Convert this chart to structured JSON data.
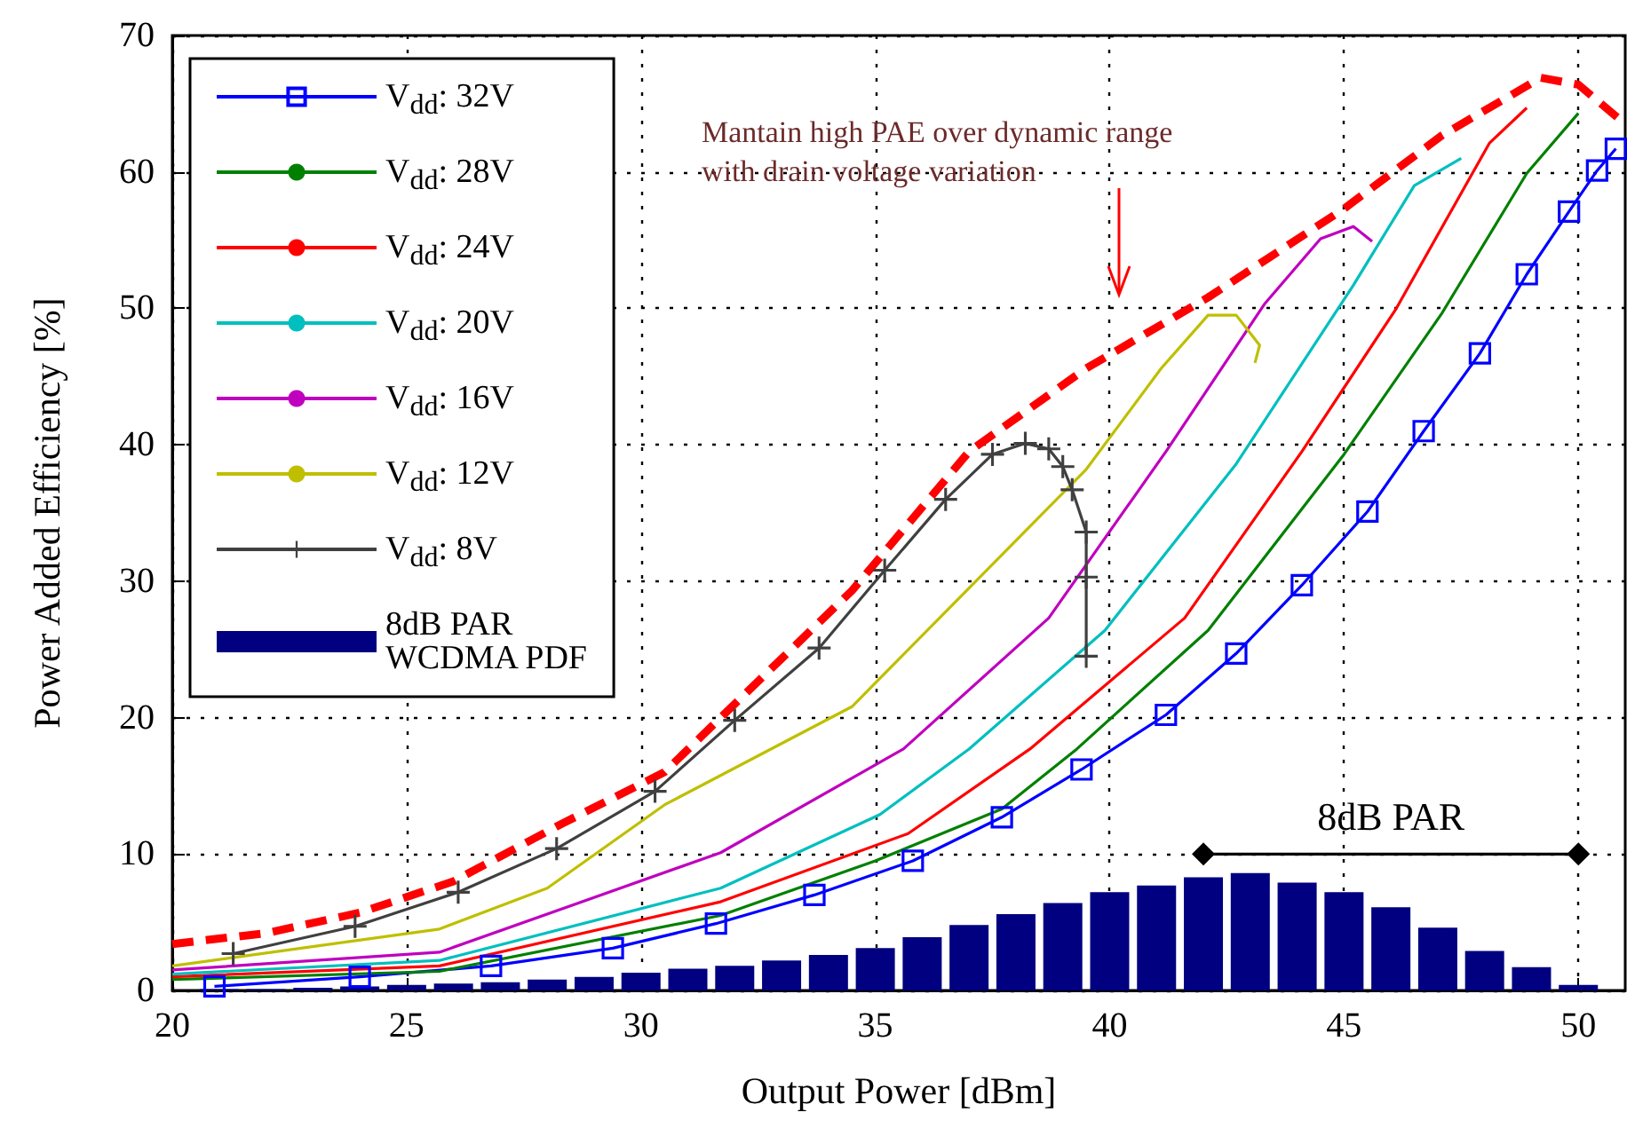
{
  "chart_data": {
    "type": "line",
    "xlabel": "Output Power [dBm]",
    "ylabel": "Power Added Efficiency [%]",
    "xlim": [
      20,
      51
    ],
    "xticks": [
      20,
      25,
      30,
      35,
      40,
      45,
      50
    ],
    "ylim": [
      0,
      70
    ],
    "yticks": [
      0,
      10,
      20,
      30,
      40,
      50,
      60,
      70
    ],
    "grid": true,
    "legend": "top left",
    "marker": "none",
    "annotations": [
      "Mantain high PAE over dynamic range\nwith drain voltage variation",
      {
        "text": "8dB PAR",
        "x": 46,
        "y": 10
      }
    ],
    "series": [
      {
        "name": "V$_{dd}$: 32V",
        "color": "#0000ff",
        "marker": "square",
        "x": [
          20.9,
          24.0,
          26.8,
          29.4,
          31.6,
          33.7,
          35.8,
          37.7,
          39.4,
          41.2,
          42.7,
          44.1,
          45.5,
          46.7,
          47.9,
          48.9,
          49.8,
          50.4,
          50.8
        ],
        "values": [
          0.3,
          1.0,
          1.8,
          3.1,
          4.9,
          7.0,
          9.5,
          12.7,
          16.2,
          20.2,
          24.7,
          29.7,
          35.1,
          41.0,
          46.7,
          52.5,
          57.1,
          60.1,
          61.7
        ]
      },
      {
        "name": "V$_{dd}$: 28V",
        "color": "#008000",
        "x": [
          20,
          25.7,
          31.7,
          35,
          37.7,
          39.3,
          42.1,
          45.0,
          47.1,
          48.9,
          50.0
        ],
        "values": [
          0.8,
          1.4,
          5.5,
          9.5,
          13.3,
          17.7,
          26.4,
          39.3,
          49.7,
          59.9,
          64.3
        ]
      },
      {
        "name": "V$_{dd}$: 24V",
        "color": "#ff0000",
        "x": [
          20,
          25.7,
          31.7,
          35.7,
          38.3,
          41.6,
          44.1,
          46.1,
          48.1,
          48.9
        ],
        "values": [
          1.0,
          1.8,
          6.5,
          11.5,
          17.7,
          27.3,
          39.5,
          49.9,
          62.1,
          64.7
        ]
      },
      {
        "name": "V$_{dd}$: 20V",
        "color": "#00bfbf",
        "x": [
          20,
          25.7,
          31.7,
          35.1,
          37.0,
          39.9,
          42.7,
          45.2,
          46.5,
          47.5
        ],
        "values": [
          1.2,
          2.2,
          7.5,
          12.9,
          17.7,
          26.4,
          38.6,
          51.7,
          59.0,
          61.0
        ]
      },
      {
        "name": "V$_{dd}$: 16V",
        "color": "#bf00bf",
        "x": [
          20,
          25.7,
          31.7,
          35.6,
          38.7,
          41.2,
          43.3,
          44.5,
          45.2,
          45.6
        ],
        "values": [
          1.5,
          2.8,
          10.1,
          17.7,
          27.3,
          39.5,
          50.3,
          55.1,
          56.0,
          54.9
        ]
      },
      {
        "name": "V$_{dd}$: 12V",
        "color": "#bfbf00",
        "x": [
          20,
          25.7,
          28.0,
          30.5,
          34.5,
          37.0,
          39.5,
          41.1,
          42.1,
          42.7,
          43.2,
          43.1
        ],
        "values": [
          1.8,
          4.5,
          7.5,
          13.6,
          20.8,
          29.5,
          38.2,
          45.6,
          49.5,
          49.5,
          47.3,
          46.0
        ]
      },
      {
        "name": "V$_{dd}$: 8V",
        "color": "#404040",
        "marker": "cross",
        "x": [
          21.3,
          23.9,
          26.1,
          28.2,
          30.3,
          32.0,
          33.8,
          35.2,
          36.5,
          37.5,
          38.2,
          38.7,
          39.0,
          39.2,
          39.5,
          39.5,
          39.5
        ],
        "values": [
          2.7,
          4.7,
          7.2,
          10.4,
          14.6,
          19.8,
          25.1,
          30.8,
          36.0,
          39.3,
          40.1,
          39.7,
          38.4,
          36.7,
          33.6,
          30.3,
          24.5
        ]
      },
      {
        "color": "#ff0000",
        "line_style": "dashed",
        "x": [
          20,
          22,
          24,
          26,
          28.3,
          30.5,
          32,
          34.5,
          37.0,
          39.5,
          42.1,
          45.0,
          47.1,
          49.2,
          50.0,
          50.9
        ],
        "values": [
          3.4,
          4.2,
          5.7,
          8.0,
          12.2,
          16.0,
          21.0,
          29.3,
          39.5,
          45.6,
          50.8,
          57.3,
          62.7,
          66.9,
          66.4,
          63.8
        ]
      },
      {
        "name": "8dB PAR\nWCDMA PDF",
        "type": "bar",
        "color": "#000080",
        "x": [
          21,
          22,
          23,
          24,
          25,
          26,
          27,
          28,
          29,
          30,
          31,
          32,
          33,
          34,
          35,
          36,
          37,
          38,
          39,
          40,
          41,
          42,
          43,
          44,
          45,
          46,
          47,
          48,
          49,
          50
        ],
        "values": [
          0.1,
          0.1,
          0.2,
          0.3,
          0.4,
          0.5,
          0.6,
          0.8,
          1.0,
          1.3,
          1.6,
          1.8,
          2.2,
          2.6,
          3.1,
          3.9,
          4.8,
          5.6,
          6.4,
          7.2,
          7.7,
          8.3,
          8.6,
          7.9,
          7.2,
          6.1,
          4.6,
          2.9,
          1.7,
          0.4
        ]
      },
      {
        "color": "#000000",
        "marker": "diamond",
        "x": [
          42,
          50
        ],
        "values": [
          10,
          10
        ]
      }
    ]
  }
}
